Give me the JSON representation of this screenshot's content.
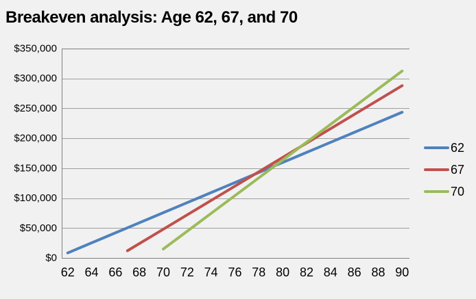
{
  "chart_data": {
    "type": "line",
    "title": "Breakeven analysis: Age 62, 67, and 70",
    "xlabel": "",
    "ylabel": "",
    "grid": true,
    "legend_position": "right",
    "x": [
      62,
      63,
      64,
      65,
      66,
      67,
      68,
      69,
      70,
      71,
      72,
      73,
      74,
      75,
      76,
      77,
      78,
      79,
      80,
      81,
      82,
      83,
      84,
      85,
      86,
      87,
      88,
      89,
      90
    ],
    "x_ticks": [
      62,
      64,
      66,
      68,
      70,
      72,
      74,
      76,
      78,
      80,
      82,
      84,
      86,
      88,
      90
    ],
    "x_tick_labels": [
      "62",
      "64",
      "66",
      "68",
      "70",
      "72",
      "74",
      "76",
      "78",
      "80",
      "82",
      "84",
      "86",
      "88",
      "90"
    ],
    "ylim": [
      0,
      350000
    ],
    "xlim": [
      62,
      90
    ],
    "y_ticks": [
      0,
      50000,
      100000,
      150000,
      200000,
      250000,
      300000,
      350000
    ],
    "y_tick_labels": [
      "$0",
      "$50,000",
      "$100,000",
      "$150,000",
      "$200,000",
      "$250,000",
      "$300,000",
      "$350,000"
    ],
    "series": [
      {
        "name": "62",
        "color": "#4F81BD",
        "start_x": 62,
        "values": [
          8400,
          16800,
          25200,
          33600,
          42000,
          50400,
          58800,
          67200,
          75600,
          84000,
          92400,
          100800,
          109200,
          117600,
          126000,
          134400,
          142800,
          151200,
          159600,
          168000,
          176400,
          184800,
          193200,
          201600,
          210000,
          218400,
          226800,
          235200,
          243600
        ]
      },
      {
        "name": "67",
        "color": "#C0504D",
        "start_x": 67,
        "values": [
          12000,
          24000,
          36000,
          48000,
          60000,
          72000,
          84000,
          96000,
          108000,
          120000,
          132000,
          144000,
          156000,
          168000,
          180000,
          192000,
          204000,
          216000,
          228000,
          240000,
          252000,
          264000,
          276000,
          288000
        ]
      },
      {
        "name": "70",
        "color": "#9BBB59",
        "start_x": 70,
        "values": [
          14880,
          29760,
          44640,
          59520,
          74400,
          89280,
          104160,
          119040,
          133920,
          148800,
          163680,
          178560,
          193440,
          208320,
          223200,
          238080,
          252960,
          267840,
          282720,
          297600,
          312480
        ]
      }
    ]
  },
  "colors": {
    "background": "#F1F1F1",
    "plot_border": "#808080",
    "gridline": "#9E9E9E",
    "axis_text": "#000000",
    "title_text": "#000000"
  }
}
